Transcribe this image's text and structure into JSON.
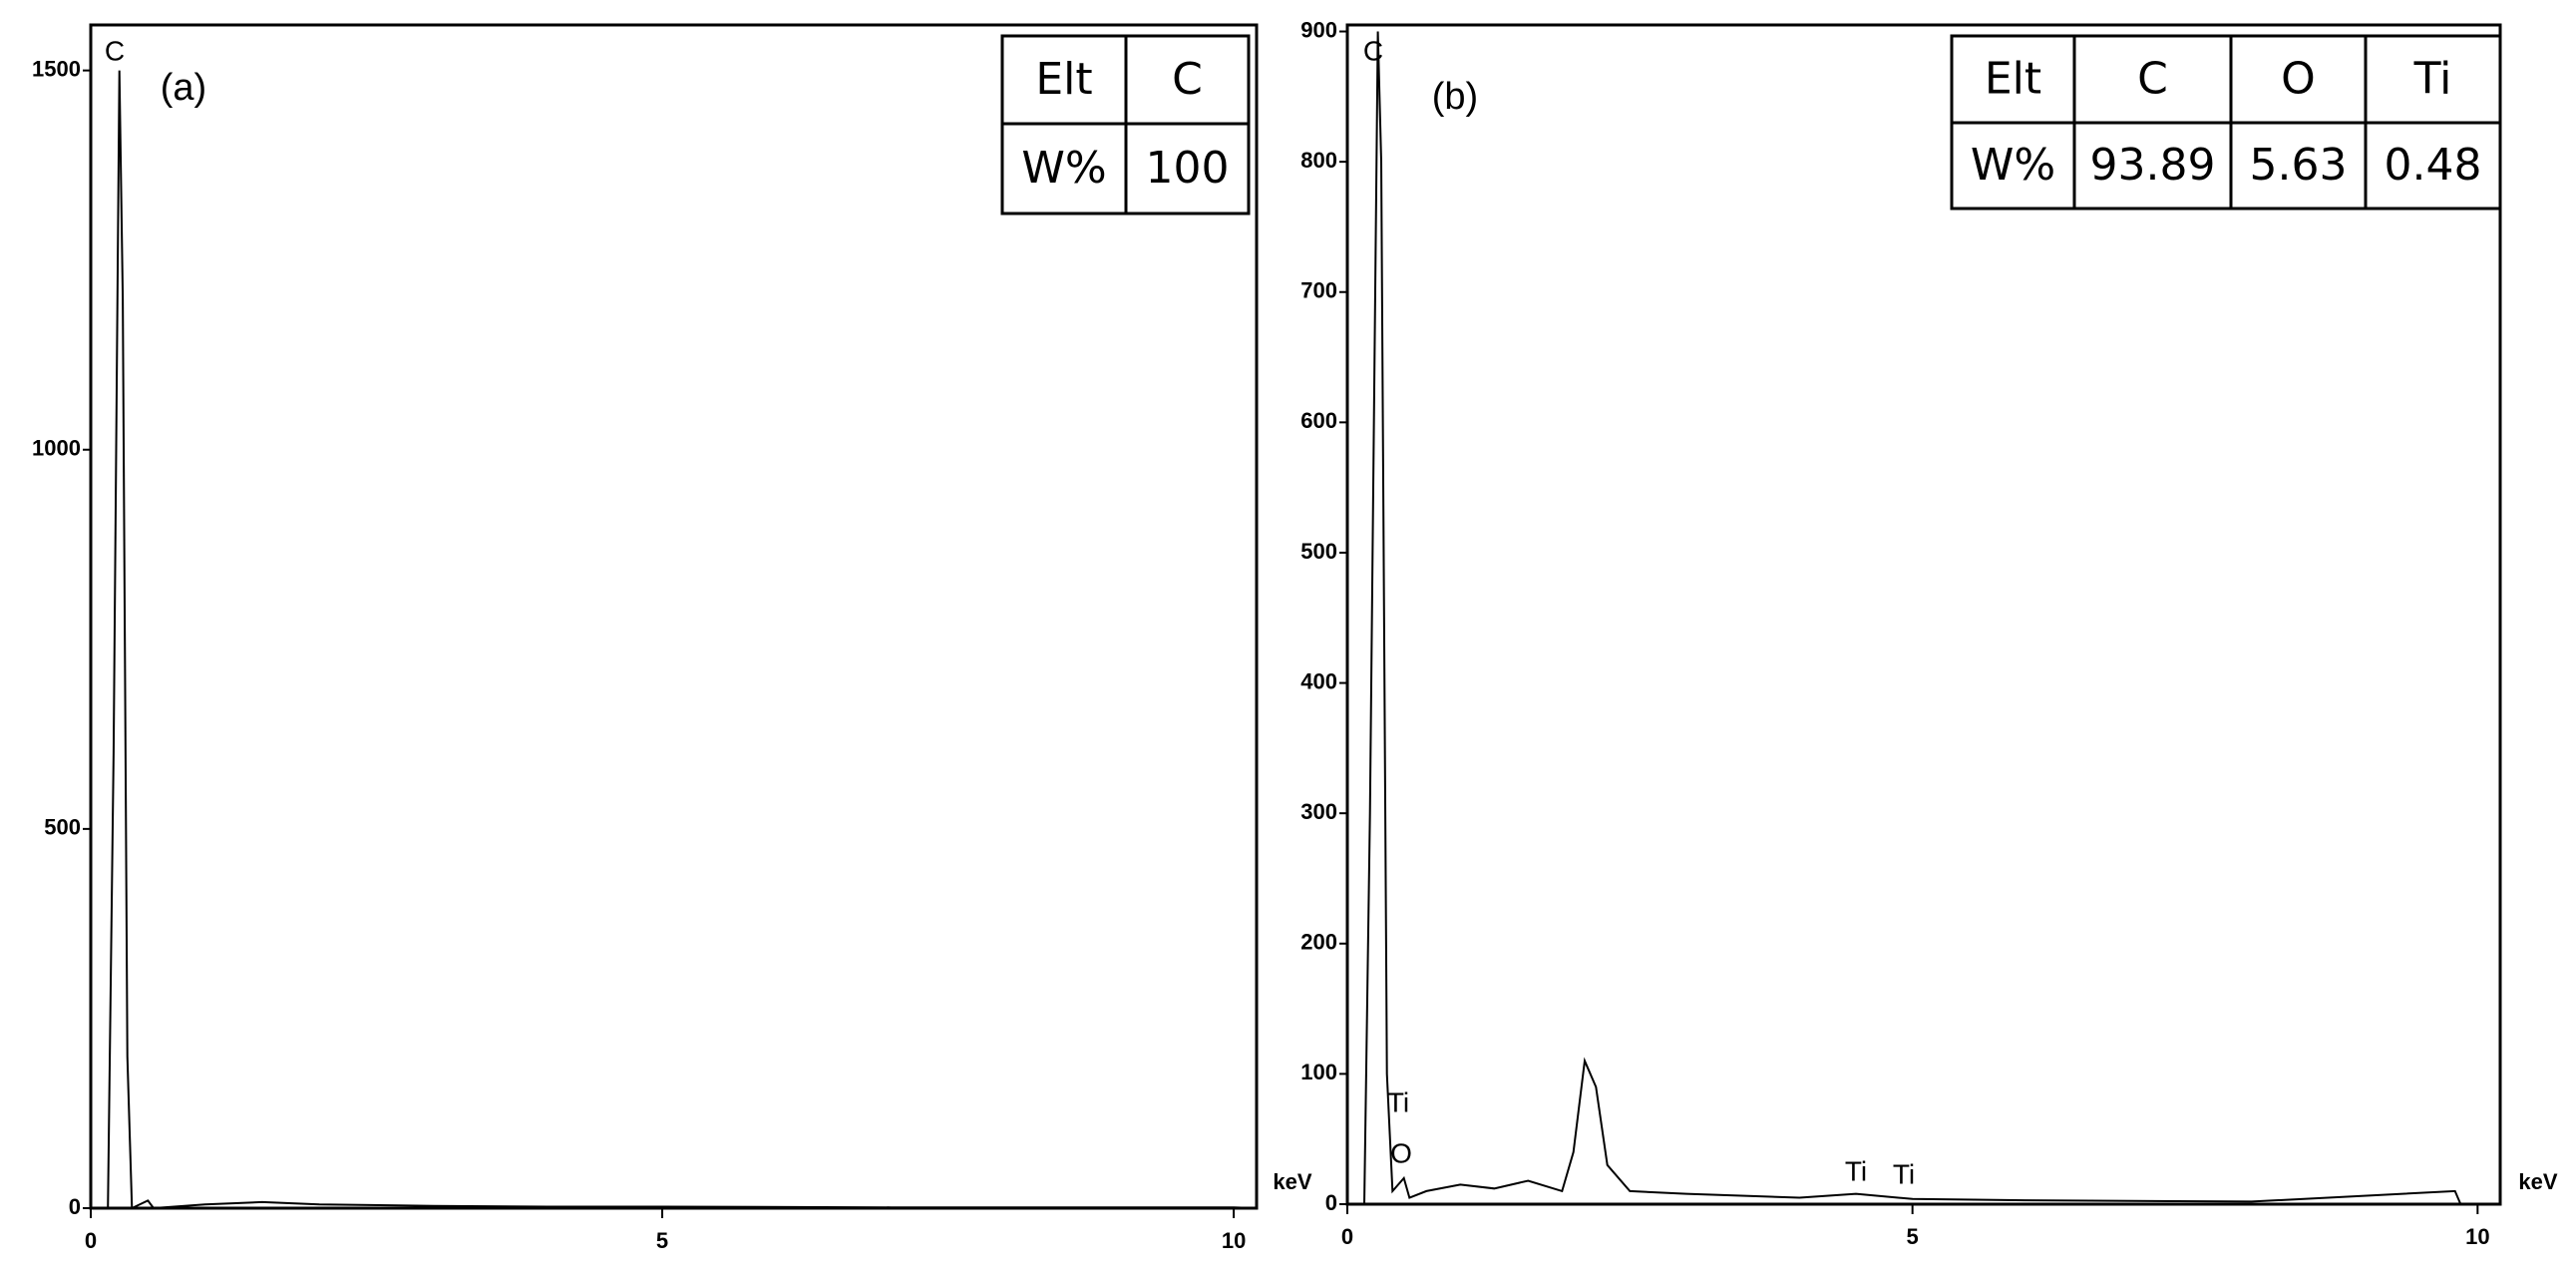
{
  "chart_data": [
    {
      "type": "line",
      "panel_label": "(a)",
      "x_label": "keV",
      "annotations": [
        "C"
      ],
      "table": {
        "rows": [
          [
            "Elt",
            "C"
          ],
          [
            "W%",
            "100"
          ]
        ]
      },
      "x": [
        0.1,
        0.15,
        0.2,
        0.25,
        0.28,
        0.32,
        0.36,
        0.5,
        0.55,
        1,
        1.5,
        2,
        3,
        4,
        5,
        7,
        10,
        10.2
      ],
      "series": [
        {
          "color": "#000000",
          "values": [
            0,
            0,
            600,
            1500,
            1200,
            200,
            0,
            10,
            0,
            5,
            8,
            5,
            3,
            2,
            2,
            1,
            1,
            0
          ]
        }
      ],
      "xlim": [
        0,
        10.2
      ],
      "xticks": [
        0,
        5,
        10
      ],
      "ylim": [
        0,
        1560
      ],
      "yticks": [
        0,
        500,
        1000,
        1500
      ],
      "grid": false
    },
    {
      "type": "line",
      "panel_label": "(b)",
      "x_label": "keV",
      "annotations": [
        "C",
        "Ti",
        "O",
        "Ti",
        "Ti"
      ],
      "table": {
        "rows": [
          [
            "Elt",
            "C",
            "O",
            "Ti"
          ],
          [
            "W%",
            "93.89",
            "5.63",
            "0.48"
          ]
        ]
      },
      "x": [
        0.1,
        0.15,
        0.2,
        0.27,
        0.3,
        0.35,
        0.4,
        0.5,
        0.55,
        0.7,
        1,
        1.3,
        1.6,
        1.9,
        2.0,
        2.1,
        2.2,
        2.3,
        2.5,
        3,
        4,
        4.5,
        5,
        6,
        8,
        9.8,
        9.85,
        10.2
      ],
      "series": [
        {
          "color": "#000000",
          "values": [
            0,
            0,
            300,
            900,
            800,
            100,
            10,
            20,
            5,
            10,
            15,
            12,
            18,
            10,
            40,
            110,
            90,
            30,
            10,
            8,
            5,
            8,
            4,
            3,
            2,
            10,
            0,
            0
          ]
        }
      ],
      "xlim": [
        0,
        10.2
      ],
      "xticks": [
        0,
        5,
        10
      ],
      "ylim": [
        0,
        905
      ],
      "yticks": [
        0,
        100,
        200,
        300,
        400,
        500,
        600,
        700,
        800,
        900
      ],
      "grid": false
    }
  ]
}
